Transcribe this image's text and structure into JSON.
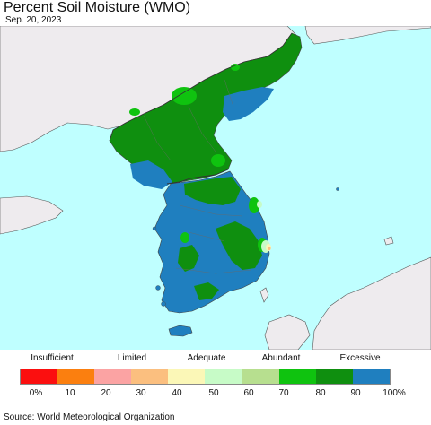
{
  "title": "Percent Soil Moisture (WMO)",
  "date": "Sep. 20, 2023",
  "legend": {
    "categories": [
      "Insufficient",
      "Limited",
      "Adequate",
      "Abundant",
      "Excessive"
    ],
    "ticks": [
      "0%",
      "10",
      "20",
      "30",
      "40",
      "50",
      "60",
      "70",
      "80",
      "90",
      "100%"
    ],
    "colors": [
      "#fb0f0f",
      "#fb7f0f",
      "#fba3a3",
      "#fbbf7f",
      "#fbf7b7",
      "#c7fbc7",
      "#b7df8f",
      "#0fc30f",
      "#0f8f0f",
      "#1f7fbf"
    ]
  },
  "map_colors": {
    "ocean": "#bfffff",
    "foreign_land": "#eeebee",
    "north_base": "#0f8f0f",
    "south_base": "#1f7fbf",
    "light_green": "#0fc30f",
    "pale": "#c7fbc7",
    "yellow": "#fbf7b7",
    "orange_spot": "#fbbf7f"
  },
  "source": "Source: World Meteorological Organization"
}
